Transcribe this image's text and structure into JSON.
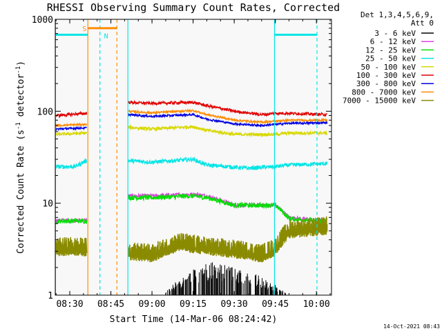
{
  "colors": {
    "background": "#ffffff",
    "plot_background": "#f8f8f8",
    "axis": "#000000",
    "attenuator_s": "#ff8c00",
    "night_n": "#00e5e5"
  },
  "footer": {
    "timestamp": "14-Oct-2021 08:43"
  },
  "chart_data": {
    "type": "line",
    "title": "RHESSI Observing Summary Count Rates, Corrected",
    "xlabel": "Start Time (14-Mar-06 08:24:42)",
    "ylabel_main": "Corrected Count Rate (s",
    "ylabel_sup1": "-1",
    "ylabel_mid": " detector",
    "ylabel_sup2": "-1",
    "ylabel_end": ")",
    "yscale": "log",
    "xlim_minutes": [
      504.7,
      605.5
    ],
    "ylim": [
      1,
      1000
    ],
    "x_ticks": [
      {
        "label": "08:30",
        "minutes": 510
      },
      {
        "label": "08:45",
        "minutes": 525
      },
      {
        "label": "09:00",
        "minutes": 540
      },
      {
        "label": "09:15",
        "minutes": 555
      },
      {
        "label": "09:30",
        "minutes": 570
      },
      {
        "label": "09:45",
        "minutes": 585
      },
      {
        "label": "10:00",
        "minutes": 600
      }
    ],
    "y_ticks": [
      {
        "label": "1",
        "value": 1
      },
      {
        "label": "10",
        "value": 10
      },
      {
        "label": "100",
        "value": 100
      },
      {
        "label": "1000",
        "value": 1000
      }
    ],
    "legend": {
      "placement": "right",
      "header_line1": "Det 1,3,4,5,6,9,",
      "header_line2": "Att 0",
      "entries": [
        {
          "label": "3 - 6 keV",
          "color": "#000000"
        },
        {
          "label": "6 - 12 keV",
          "color": "#e040e0"
        },
        {
          "label": "12 - 25 keV",
          "color": "#00e000"
        },
        {
          "label": "25 - 50 keV",
          "color": "#00e5e5"
        },
        {
          "label": "50 - 100 keV",
          "color": "#d8d800"
        },
        {
          "label": "100 - 300 keV",
          "color": "#e00000"
        },
        {
          "label": "300 - 800 keV",
          "color": "#0000e0"
        },
        {
          "label": "800 - 7000 keV",
          "color": "#ff8c00"
        },
        {
          "label": "7000 - 15000 keV",
          "color": "#8b8b00"
        }
      ]
    },
    "flag_labels": {
      "S": "S",
      "N": "N"
    },
    "flags": {
      "saa": {
        "start": 516.6,
        "end": 527.2,
        "level": 800
      },
      "night": [
        {
          "start": 504.7,
          "end": 516.6,
          "level": 680
        },
        {
          "start": 584.7,
          "end": 600.2,
          "level": 680
        }
      ]
    },
    "vertical_markers": [
      {
        "minutes": 504.8,
        "color": "#00e5e5",
        "style": "solid"
      },
      {
        "minutes": 516.6,
        "color": "#ff8c00",
        "style": "solid"
      },
      {
        "minutes": 521.0,
        "color": "#00e5e5",
        "style": "dashed"
      },
      {
        "minutes": 527.2,
        "color": "#ff8c00",
        "style": "dashed"
      },
      {
        "minutes": 531.2,
        "color": "#00e5e5",
        "style": "solid"
      },
      {
        "minutes": 584.7,
        "color": "#00e5e5",
        "style": "solid"
      },
      {
        "minutes": 600.2,
        "color": "#00e5e5",
        "style": "dashed"
      }
    ],
    "segments": [
      {
        "start": 504.8,
        "end": 516.3
      },
      {
        "start": 531.3,
        "end": 604.0
      }
    ],
    "series": [
      {
        "name": "3 - 6 keV",
        "color": "#000000",
        "style": "bursts",
        "noise": 0.5,
        "x": [
          544,
          560,
          575,
          585,
          590
        ],
        "y": [
          1,
          1.9,
          1.6,
          1.2,
          1
        ]
      },
      {
        "name": "6 - 12 keV",
        "color": "#e040e0",
        "noise": 0.05,
        "x": [
          505,
          516,
          531.3,
          540,
          555,
          560,
          570,
          580,
          585,
          590,
          600,
          604
        ],
        "y": [
          6.5,
          6.5,
          12,
          12,
          12.5,
          12,
          9.5,
          9.5,
          9.5,
          7,
          6.5,
          6.5
        ]
      },
      {
        "name": "12 - 25 keV",
        "color": "#00e000",
        "noise": 0.06,
        "x": [
          505,
          516,
          531.3,
          540,
          555,
          560,
          570,
          580,
          585,
          590,
          600,
          604
        ],
        "y": [
          6.4,
          6.4,
          11.5,
          11.5,
          12,
          11.5,
          9.5,
          9.5,
          9.5,
          6.8,
          6.4,
          6.4
        ]
      },
      {
        "name": "25 - 50 keV",
        "color": "#00e5e5",
        "noise": 0.05,
        "x": [
          505,
          512,
          516,
          531.3,
          540,
          555,
          560,
          575,
          585,
          590,
          604
        ],
        "y": [
          25,
          25,
          29,
          29,
          28,
          30,
          26,
          24,
          25,
          26,
          27
        ]
      },
      {
        "name": "50 - 100 keV",
        "color": "#d8d800",
        "noise": 0.04,
        "x": [
          505,
          516,
          531.3,
          540,
          555,
          560,
          570,
          585,
          590,
          604
        ],
        "y": [
          56,
          58,
          67,
          64,
          68,
          62,
          56,
          56,
          58,
          58
        ]
      },
      {
        "name": "100 - 300 keV",
        "color": "#e00000",
        "noise": 0.035,
        "x": [
          505,
          516,
          531.3,
          540,
          555,
          560,
          570,
          580,
          585,
          590,
          604
        ],
        "y": [
          90,
          95,
          125,
          122,
          125,
          115,
          100,
          92,
          95,
          95,
          92
        ]
      },
      {
        "name": "300 - 800 keV",
        "color": "#0000e0",
        "noise": 0.025,
        "x": [
          505,
          516,
          531.3,
          540,
          555,
          560,
          570,
          580,
          585,
          590,
          604
        ],
        "y": [
          64,
          66,
          92,
          88,
          92,
          82,
          73,
          70,
          72,
          74,
          75
        ]
      },
      {
        "name": "800 - 7000 keV",
        "color": "#ff8c00",
        "noise": 0.025,
        "x": [
          505,
          516,
          531.3,
          540,
          555,
          560,
          570,
          580,
          585,
          590,
          604
        ],
        "y": [
          70,
          72,
          100,
          96,
          102,
          92,
          80,
          76,
          78,
          80,
          80
        ]
      },
      {
        "name": "7000 - 15000 keV",
        "color": "#8b8b00",
        "style": "band",
        "noise": 0.2,
        "x": [
          505,
          510,
          516,
          531.3,
          540,
          550,
          560,
          575,
          580,
          585,
          590,
          604
        ],
        "y": [
          3.5,
          3.6,
          3.5,
          3.2,
          3,
          4,
          3.6,
          3.2,
          3,
          3.5,
          5.5,
          6
        ]
      }
    ]
  }
}
